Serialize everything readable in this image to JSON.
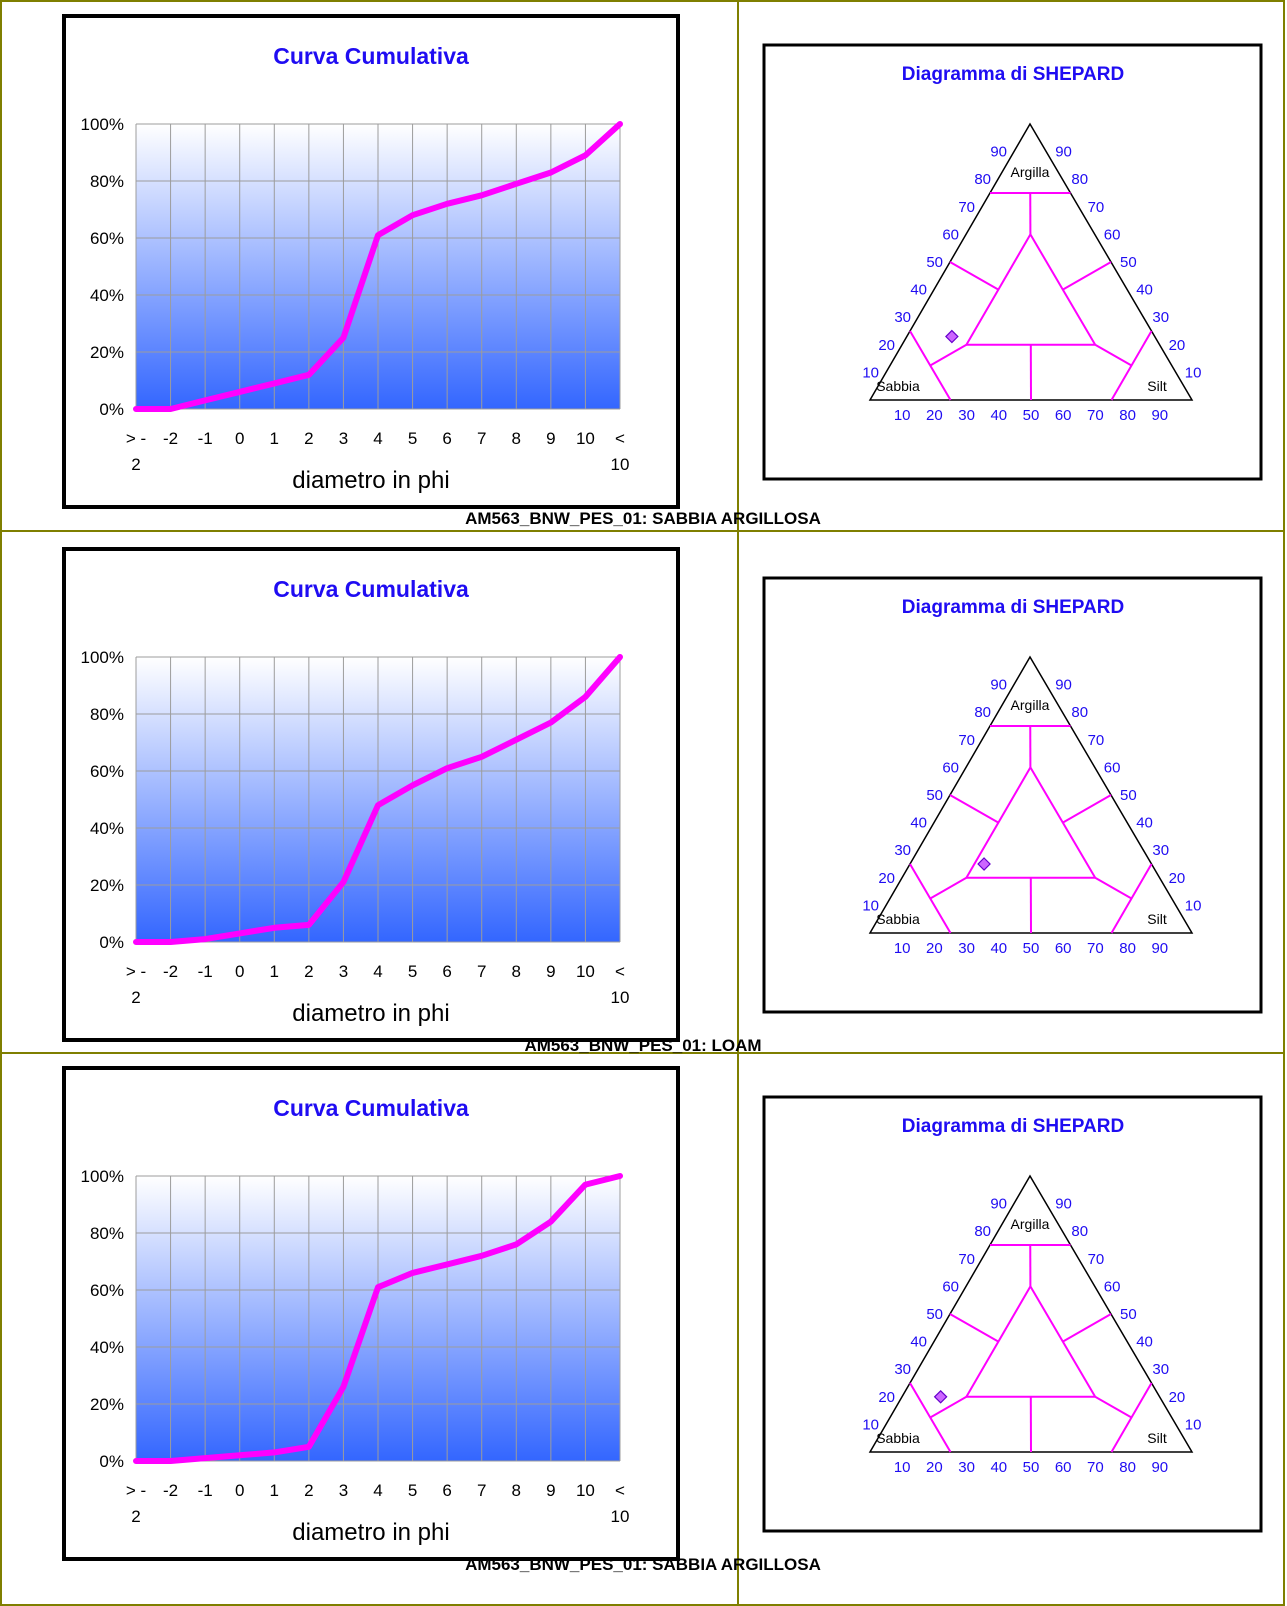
{
  "colors": {
    "curve": "#ff00ff",
    "title": "#1f0cf2",
    "gradient_top": "#ffffff",
    "gradient_bottom": "#3366ff",
    "frame": "#000000",
    "table_border": "#7f7f00",
    "marker_fill": "#cc66ff"
  },
  "rows": [
    {
      "caption": "AM563_BNW_PES_01: SABBIA ARGILLOSA",
      "cumulative": {
        "chart_data": {
          "type": "line",
          "title": "Curva Cumulativa",
          "xlabel": "diametro in phi",
          "x_ticks": [
            [
              "> -",
              "2"
            ],
            [
              "-2"
            ],
            [
              "-1"
            ],
            [
              "0"
            ],
            [
              "1"
            ],
            [
              "2"
            ],
            [
              "3"
            ],
            [
              "4"
            ],
            [
              "5"
            ],
            [
              "6"
            ],
            [
              "7"
            ],
            [
              "8"
            ],
            [
              "9"
            ],
            [
              "10"
            ],
            [
              "<",
              "10"
            ]
          ],
          "y_ticks": [
            "0%",
            "20%",
            "40%",
            "60%",
            "80%",
            "100%"
          ],
          "ylim": [
            0,
            100
          ],
          "grid": true,
          "values": [
            0,
            0,
            3,
            6,
            9,
            12,
            25,
            61,
            68,
            72,
            75,
            79,
            83,
            89,
            100
          ]
        }
      },
      "shepard": {
        "title": "Diagramma di SHEPARD",
        "vertices": {
          "top": "Argilla",
          "left": "Sabbia",
          "right": "Silt"
        },
        "left_ticks": [
          "10",
          "20",
          "30",
          "40",
          "50",
          "60",
          "70",
          "80",
          "90"
        ],
        "right_ticks": [
          "90",
          "80",
          "70",
          "60",
          "50",
          "40",
          "30",
          "20",
          "10"
        ],
        "bottom_ticks": [
          "10",
          "20",
          "30",
          "40",
          "50",
          "60",
          "70",
          "80",
          "90"
        ],
        "point": {
          "sand": 63,
          "silt": 14,
          "clay": 23
        }
      }
    },
    {
      "caption": "AM563_BNW_PES_01: LOAM",
      "cumulative": {
        "chart_data": {
          "type": "line",
          "title": "Curva Cumulativa",
          "xlabel": "diametro in phi",
          "x_ticks": [
            [
              "> -",
              "2"
            ],
            [
              "-2"
            ],
            [
              "-1"
            ],
            [
              "0"
            ],
            [
              "1"
            ],
            [
              "2"
            ],
            [
              "3"
            ],
            [
              "4"
            ],
            [
              "5"
            ],
            [
              "6"
            ],
            [
              "7"
            ],
            [
              "8"
            ],
            [
              "9"
            ],
            [
              "10"
            ],
            [
              "<",
              "10"
            ]
          ],
          "y_ticks": [
            "0%",
            "20%",
            "40%",
            "60%",
            "80%",
            "100%"
          ],
          "ylim": [
            0,
            100
          ],
          "grid": true,
          "values": [
            0,
            0,
            1,
            3,
            5,
            6,
            21,
            48,
            55,
            61,
            65,
            71,
            77,
            86,
            100
          ]
        }
      },
      "shepard": {
        "title": "Diagramma di SHEPARD",
        "vertices": {
          "top": "Argilla",
          "left": "Sabbia",
          "right": "Silt"
        },
        "left_ticks": [
          "10",
          "20",
          "30",
          "40",
          "50",
          "60",
          "70",
          "80",
          "90"
        ],
        "right_ticks": [
          "90",
          "80",
          "70",
          "60",
          "50",
          "40",
          "30",
          "20",
          "10"
        ],
        "bottom_ticks": [
          "10",
          "20",
          "30",
          "40",
          "50",
          "60",
          "70",
          "80",
          "90"
        ],
        "point": {
          "sand": 52,
          "silt": 23,
          "clay": 25
        }
      }
    },
    {
      "caption": "AM563_BNW_PES_01: SABBIA ARGILLOSA",
      "cumulative": {
        "chart_data": {
          "type": "line",
          "title": "Curva Cumulativa",
          "xlabel": "diametro in phi",
          "x_ticks": [
            [
              "> -",
              "2"
            ],
            [
              "-2"
            ],
            [
              "-1"
            ],
            [
              "0"
            ],
            [
              "1"
            ],
            [
              "2"
            ],
            [
              "3"
            ],
            [
              "4"
            ],
            [
              "5"
            ],
            [
              "6"
            ],
            [
              "7"
            ],
            [
              "8"
            ],
            [
              "9"
            ],
            [
              "10"
            ],
            [
              "<",
              "10"
            ]
          ],
          "y_ticks": [
            "0%",
            "20%",
            "40%",
            "60%",
            "80%",
            "100%"
          ],
          "ylim": [
            0,
            100
          ],
          "grid": true,
          "values": [
            0,
            0,
            1,
            2,
            3,
            5,
            26,
            61,
            66,
            69,
            72,
            76,
            84,
            97,
            100
          ]
        }
      },
      "shepard": {
        "title": "Diagramma di SHEPARD",
        "vertices": {
          "top": "Argilla",
          "left": "Sabbia",
          "right": "Silt"
        },
        "left_ticks": [
          "10",
          "20",
          "30",
          "40",
          "50",
          "60",
          "70",
          "80",
          "90"
        ],
        "right_ticks": [
          "90",
          "80",
          "70",
          "60",
          "50",
          "40",
          "30",
          "20",
          "10"
        ],
        "bottom_ticks": [
          "10",
          "20",
          "30",
          "40",
          "50",
          "60",
          "70",
          "80",
          "90"
        ],
        "point": {
          "sand": 68,
          "silt": 12,
          "clay": 20
        }
      }
    }
  ]
}
